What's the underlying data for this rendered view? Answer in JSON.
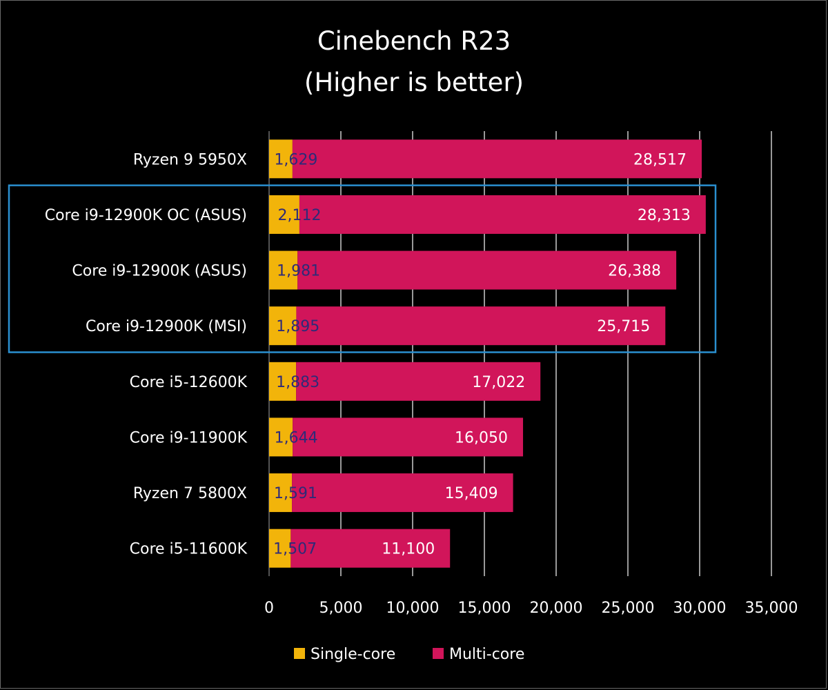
{
  "chart_data": {
    "type": "bar",
    "orientation": "horizontal",
    "title": "Cinebench R23",
    "subtitle": "(Higher is better)",
    "categories": [
      "Ryzen 9 5950X",
      "Core i9-12900K OC (ASUS)",
      "Core i9-12900K (ASUS)",
      "Core i9-12900K (MSI)",
      "Core i5-12600K",
      "Core i9-11900K",
      "Ryzen 7 5800X",
      "Core i5-11600K"
    ],
    "series": [
      {
        "name": "Single-core",
        "color": "#f2b40a",
        "values": [
          1629,
          2112,
          1981,
          1895,
          1883,
          1644,
          1591,
          1507
        ],
        "labels": [
          "1,629",
          "2,112",
          "1,981",
          "1,895",
          "1,883",
          "1,644",
          "1,591",
          "1,507"
        ]
      },
      {
        "name": "Multi-core",
        "color": "#d1155a",
        "values": [
          28517,
          28313,
          26388,
          25715,
          17022,
          16050,
          15409,
          11100
        ],
        "labels": [
          "28,517",
          "28,313",
          "26,388",
          "25,715",
          "17,022",
          "16,050",
          "15,409",
          "11,100"
        ]
      }
    ],
    "stacked": true,
    "xlim": [
      0,
      35000
    ],
    "xticks": [
      0,
      5000,
      10000,
      15000,
      20000,
      25000,
      30000,
      35000
    ],
    "xtick_labels": [
      "0",
      "5,000",
      "10,000",
      "15,000",
      "20,000",
      "25,000",
      "30,000",
      "35,000"
    ],
    "grid": true,
    "legend_position": "bottom",
    "highlight": {
      "categories": [
        "Core i9-12900K OC (ASUS)",
        "Core i9-12900K (ASUS)",
        "Core i9-12900K (MSI)"
      ],
      "color": "#2a8fd0"
    },
    "background": "#000000",
    "grid_color": "#ffffff"
  }
}
